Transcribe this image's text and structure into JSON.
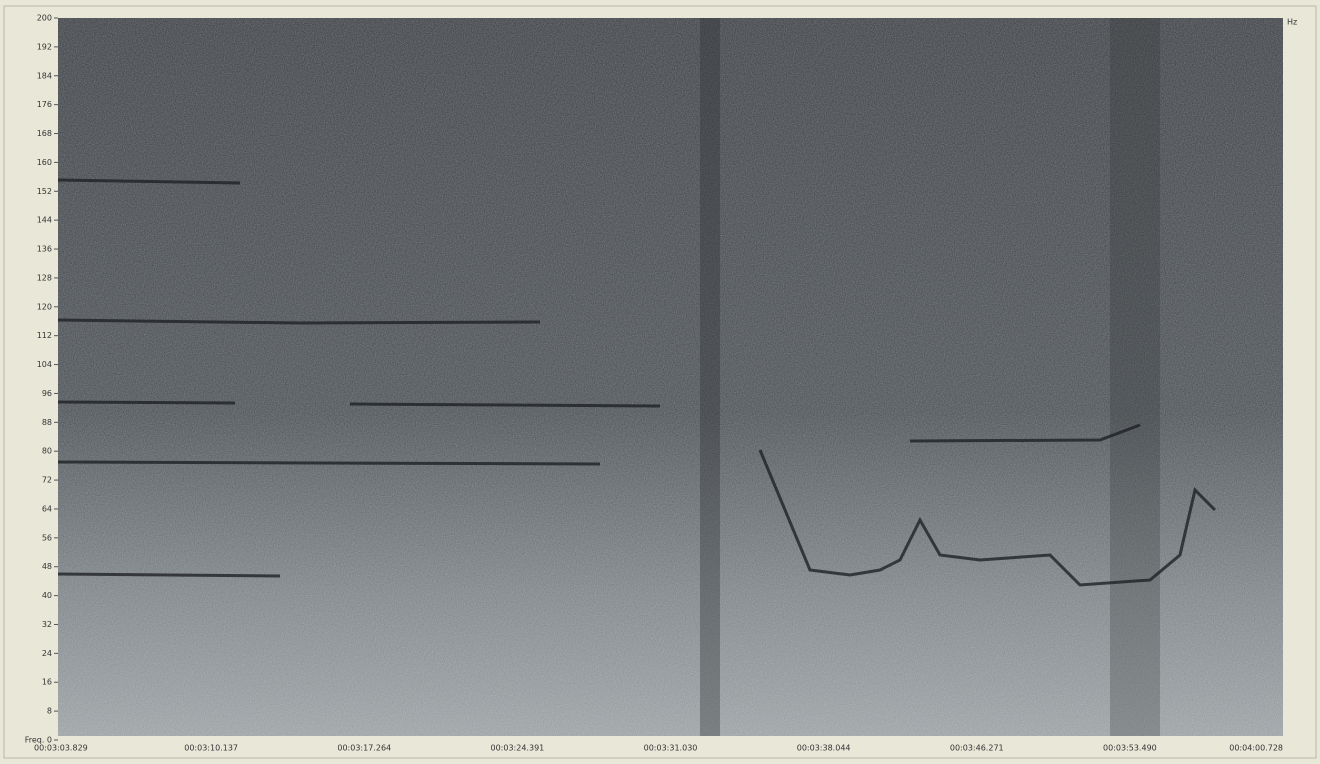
{
  "window": {
    "unit_label": "Hz",
    "y_labels": [
      "200",
      "192",
      "184",
      "176",
      "168",
      "160",
      "152",
      "144",
      "136",
      "128",
      "120",
      "112",
      "104",
      "96",
      "88",
      "80",
      "72",
      "64",
      "56",
      "48",
      "40",
      "32",
      "24",
      "16",
      "8",
      "Freq. 0"
    ],
    "x_labels": [
      "00:03:03.829",
      "00:03:10.137",
      "00:03:17.264",
      "00:03:24.391",
      "00:03:31.030",
      "00:03:38.044",
      "00:03:46.271",
      "00:03:53.490",
      "00:04:00.728"
    ]
  }
}
